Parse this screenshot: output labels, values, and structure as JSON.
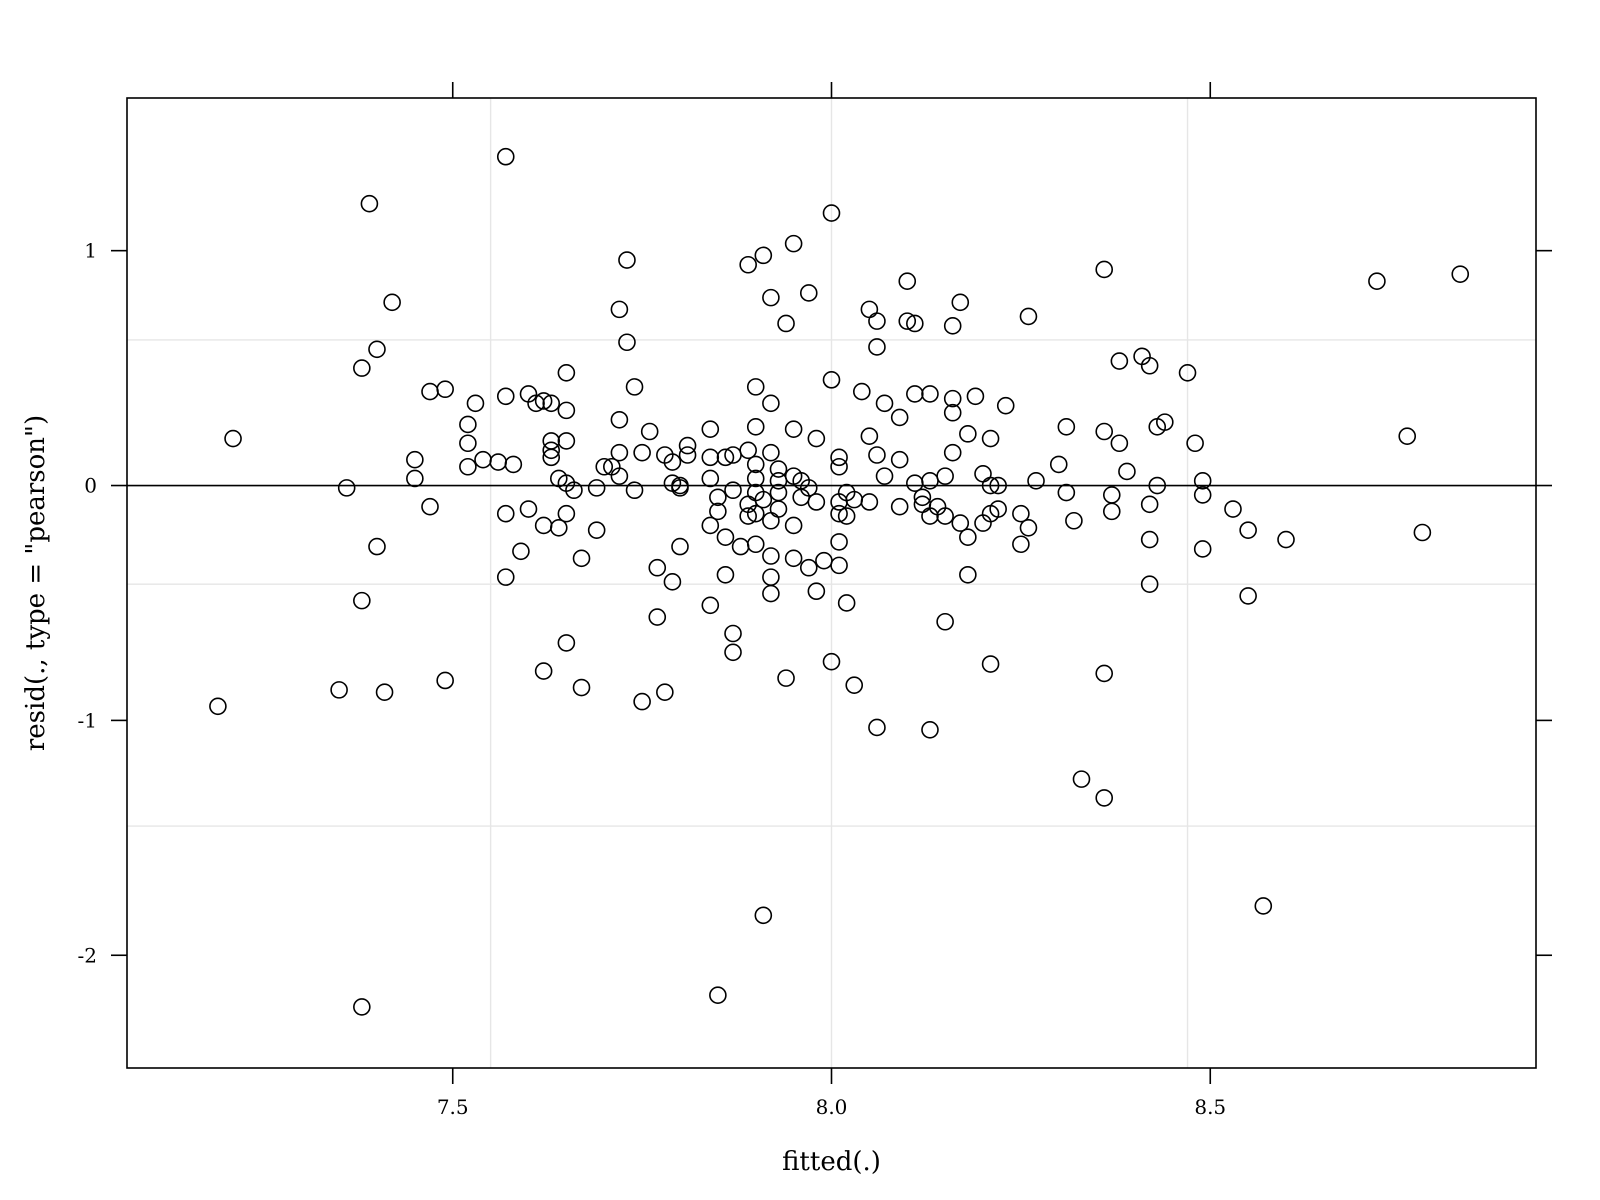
{
  "chart_data": {
    "type": "scatter",
    "title": "",
    "xlabel": "fitted(.)",
    "ylabel": "resid(., type = \"pearson\")",
    "xlim": [
      7.07,
      8.93
    ],
    "ylim": [
      -2.48,
      1.65
    ],
    "x_ticks": [
      7.5,
      8.0,
      8.5
    ],
    "x_tick_labels": [
      "7.5",
      "8.0",
      "8.5"
    ],
    "y_ticks": [
      -2,
      -1,
      0,
      1
    ],
    "y_tick_labels": [
      "-2",
      "-1",
      "0",
      "1"
    ],
    "grid": true,
    "grid_x": [
      7.55,
      8.0,
      8.47
    ],
    "grid_y": [
      -1.45,
      -0.42,
      0.62
    ],
    "reference_line_y": 0,
    "marker": "open-circle",
    "colors": {
      "points": "#000000",
      "grid": "#e6e6e6",
      "axis": "#000000"
    },
    "points": [
      [
        7.57,
        1.4
      ],
      [
        7.39,
        1.2
      ],
      [
        8.0,
        1.16
      ],
      [
        7.95,
        1.03
      ],
      [
        7.91,
        0.98
      ],
      [
        7.73,
        0.96
      ],
      [
        7.89,
        0.94
      ],
      [
        8.36,
        0.92
      ],
      [
        8.83,
        0.9
      ],
      [
        8.1,
        0.87
      ],
      [
        8.72,
        0.87
      ],
      [
        7.92,
        0.8
      ],
      [
        7.42,
        0.78
      ],
      [
        8.17,
        0.78
      ],
      [
        7.97,
        0.82
      ],
      [
        7.72,
        0.75
      ],
      [
        8.05,
        0.75
      ],
      [
        8.06,
        0.7
      ],
      [
        8.11,
        0.69
      ],
      [
        8.1,
        0.7
      ],
      [
        7.94,
        0.69
      ],
      [
        8.16,
        0.68
      ],
      [
        8.26,
        0.72
      ],
      [
        7.73,
        0.61
      ],
      [
        8.06,
        0.59
      ],
      [
        7.4,
        0.58
      ],
      [
        8.38,
        0.53
      ],
      [
        8.41,
        0.55
      ],
      [
        8.42,
        0.51
      ],
      [
        7.38,
        0.5
      ],
      [
        8.47,
        0.48
      ],
      [
        7.65,
        0.48
      ],
      [
        8.0,
        0.45
      ],
      [
        7.9,
        0.42
      ],
      [
        7.74,
        0.42
      ],
      [
        7.47,
        0.4
      ],
      [
        7.49,
        0.41
      ],
      [
        8.04,
        0.4
      ],
      [
        8.11,
        0.39
      ],
      [
        8.13,
        0.39
      ],
      [
        8.19,
        0.38
      ],
      [
        7.57,
        0.38
      ],
      [
        7.6,
        0.39
      ],
      [
        7.61,
        0.35
      ],
      [
        7.62,
        0.36
      ],
      [
        7.63,
        0.35
      ],
      [
        7.53,
        0.35
      ],
      [
        7.65,
        0.32
      ],
      [
        7.92,
        0.35
      ],
      [
        8.07,
        0.35
      ],
      [
        8.16,
        0.37
      ],
      [
        8.23,
        0.34
      ],
      [
        8.16,
        0.31
      ],
      [
        8.09,
        0.29
      ],
      [
        7.72,
        0.28
      ],
      [
        8.44,
        0.27
      ],
      [
        8.43,
        0.25
      ],
      [
        8.31,
        0.25
      ],
      [
        7.52,
        0.26
      ],
      [
        7.76,
        0.23
      ],
      [
        7.84,
        0.24
      ],
      [
        7.9,
        0.25
      ],
      [
        7.95,
        0.24
      ],
      [
        8.36,
        0.23
      ],
      [
        8.18,
        0.22
      ],
      [
        8.05,
        0.21
      ],
      [
        8.21,
        0.2
      ],
      [
        7.21,
        0.2
      ],
      [
        7.63,
        0.19
      ],
      [
        7.65,
        0.19
      ],
      [
        7.98,
        0.2
      ],
      [
        8.38,
        0.18
      ],
      [
        8.48,
        0.18
      ],
      [
        8.76,
        0.21
      ],
      [
        7.52,
        0.18
      ],
      [
        7.81,
        0.17
      ],
      [
        7.63,
        0.15
      ],
      [
        7.72,
        0.14
      ],
      [
        7.75,
        0.14
      ],
      [
        7.78,
        0.13
      ],
      [
        7.81,
        0.13
      ],
      [
        7.84,
        0.12
      ],
      [
        7.86,
        0.12
      ],
      [
        7.89,
        0.15
      ],
      [
        7.92,
        0.14
      ],
      [
        8.01,
        0.12
      ],
      [
        8.06,
        0.13
      ],
      [
        8.16,
        0.14
      ],
      [
        7.45,
        0.11
      ],
      [
        7.54,
        0.11
      ],
      [
        7.56,
        0.1
      ],
      [
        7.63,
        0.12
      ],
      [
        7.79,
        0.1
      ],
      [
        7.87,
        0.13
      ],
      [
        7.9,
        0.09
      ],
      [
        8.01,
        0.08
      ],
      [
        8.09,
        0.11
      ],
      [
        8.3,
        0.09
      ],
      [
        8.39,
        0.06
      ],
      [
        8.2,
        0.05
      ],
      [
        7.52,
        0.08
      ],
      [
        7.58,
        0.09
      ],
      [
        7.7,
        0.08
      ],
      [
        7.71,
        0.08
      ],
      [
        7.72,
        0.04
      ],
      [
        7.93,
        0.07
      ],
      [
        7.95,
        0.04
      ],
      [
        8.07,
        0.04
      ],
      [
        8.15,
        0.04
      ],
      [
        7.45,
        0.03
      ],
      [
        7.64,
        0.03
      ],
      [
        7.65,
        0.01
      ],
      [
        7.69,
        -0.01
      ],
      [
        7.79,
        0.01
      ],
      [
        7.8,
        0.0
      ],
      [
        7.84,
        0.03
      ],
      [
        7.9,
        0.03
      ],
      [
        7.93,
        0.02
      ],
      [
        7.96,
        0.02
      ],
      [
        8.11,
        0.01
      ],
      [
        8.13,
        0.02
      ],
      [
        8.21,
        0.0
      ],
      [
        8.22,
        0.0
      ],
      [
        8.27,
        0.02
      ],
      [
        8.43,
        0.0
      ],
      [
        8.49,
        0.02
      ],
      [
        7.36,
        -0.01
      ],
      [
        7.66,
        -0.02
      ],
      [
        7.74,
        -0.02
      ],
      [
        7.8,
        -0.01
      ],
      [
        7.87,
        -0.02
      ],
      [
        7.9,
        -0.03
      ],
      [
        7.93,
        -0.03
      ],
      [
        7.97,
        -0.01
      ],
      [
        8.02,
        -0.03
      ],
      [
        8.03,
        -0.06
      ],
      [
        8.12,
        -0.05
      ],
      [
        8.31,
        -0.03
      ],
      [
        8.37,
        -0.04
      ],
      [
        8.49,
        -0.04
      ],
      [
        7.85,
        -0.05
      ],
      [
        7.91,
        -0.06
      ],
      [
        7.96,
        -0.05
      ],
      [
        8.01,
        -0.07
      ],
      [
        7.89,
        -0.08
      ],
      [
        7.98,
        -0.07
      ],
      [
        8.05,
        -0.07
      ],
      [
        8.12,
        -0.08
      ],
      [
        7.47,
        -0.09
      ],
      [
        7.6,
        -0.1
      ],
      [
        8.09,
        -0.09
      ],
      [
        8.14,
        -0.09
      ],
      [
        8.42,
        -0.08
      ],
      [
        8.53,
        -0.1
      ],
      [
        7.57,
        -0.12
      ],
      [
        7.65,
        -0.12
      ],
      [
        7.85,
        -0.11
      ],
      [
        7.9,
        -0.12
      ],
      [
        7.89,
        -0.13
      ],
      [
        7.93,
        -0.1
      ],
      [
        8.01,
        -0.12
      ],
      [
        8.02,
        -0.13
      ],
      [
        8.13,
        -0.13
      ],
      [
        8.15,
        -0.13
      ],
      [
        8.21,
        -0.12
      ],
      [
        8.22,
        -0.1
      ],
      [
        8.25,
        -0.12
      ],
      [
        8.32,
        -0.15
      ],
      [
        8.37,
        -0.11
      ],
      [
        7.62,
        -0.17
      ],
      [
        7.64,
        -0.18
      ],
      [
        7.69,
        -0.19
      ],
      [
        7.84,
        -0.17
      ],
      [
        7.92,
        -0.15
      ],
      [
        7.95,
        -0.17
      ],
      [
        8.17,
        -0.16
      ],
      [
        8.2,
        -0.16
      ],
      [
        8.26,
        -0.18
      ],
      [
        8.55,
        -0.19
      ],
      [
        8.78,
        -0.2
      ],
      [
        7.86,
        -0.22
      ],
      [
        7.9,
        -0.25
      ],
      [
        7.88,
        -0.26
      ],
      [
        7.8,
        -0.26
      ],
      [
        8.01,
        -0.24
      ],
      [
        8.18,
        -0.22
      ],
      [
        8.42,
        -0.23
      ],
      [
        8.6,
        -0.23
      ],
      [
        8.25,
        -0.25
      ],
      [
        8.49,
        -0.27
      ],
      [
        7.4,
        -0.26
      ],
      [
        7.59,
        -0.28
      ],
      [
        7.67,
        -0.31
      ],
      [
        7.92,
        -0.3
      ],
      [
        7.95,
        -0.31
      ],
      [
        7.99,
        -0.32
      ],
      [
        8.01,
        -0.34
      ],
      [
        7.97,
        -0.35
      ],
      [
        7.77,
        -0.35
      ],
      [
        8.18,
        -0.38
      ],
      [
        7.57,
        -0.39
      ],
      [
        7.79,
        -0.41
      ],
      [
        7.86,
        -0.38
      ],
      [
        7.92,
        -0.39
      ],
      [
        7.98,
        -0.45
      ],
      [
        7.92,
        -0.46
      ],
      [
        8.42,
        -0.42
      ],
      [
        8.55,
        -0.47
      ],
      [
        7.38,
        -0.49
      ],
      [
        7.84,
        -0.51
      ],
      [
        8.02,
        -0.5
      ],
      [
        7.77,
        -0.56
      ],
      [
        8.15,
        -0.58
      ],
      [
        7.87,
        -0.63
      ],
      [
        7.65,
        -0.67
      ],
      [
        7.87,
        -0.71
      ],
      [
        8.0,
        -0.75
      ],
      [
        8.21,
        -0.76
      ],
      [
        7.62,
        -0.79
      ],
      [
        8.36,
        -0.8
      ],
      [
        7.94,
        -0.82
      ],
      [
        7.49,
        -0.83
      ],
      [
        8.03,
        -0.85
      ],
      [
        7.67,
        -0.86
      ],
      [
        7.35,
        -0.87
      ],
      [
        7.41,
        -0.88
      ],
      [
        7.78,
        -0.88
      ],
      [
        7.75,
        -0.92
      ],
      [
        7.19,
        -0.94
      ],
      [
        8.06,
        -1.03
      ],
      [
        8.13,
        -1.04
      ],
      [
        8.33,
        -1.25
      ],
      [
        8.36,
        -1.33
      ],
      [
        8.57,
        -1.79
      ],
      [
        7.91,
        -1.83
      ],
      [
        7.85,
        -2.17
      ],
      [
        7.38,
        -2.22
      ]
    ]
  }
}
